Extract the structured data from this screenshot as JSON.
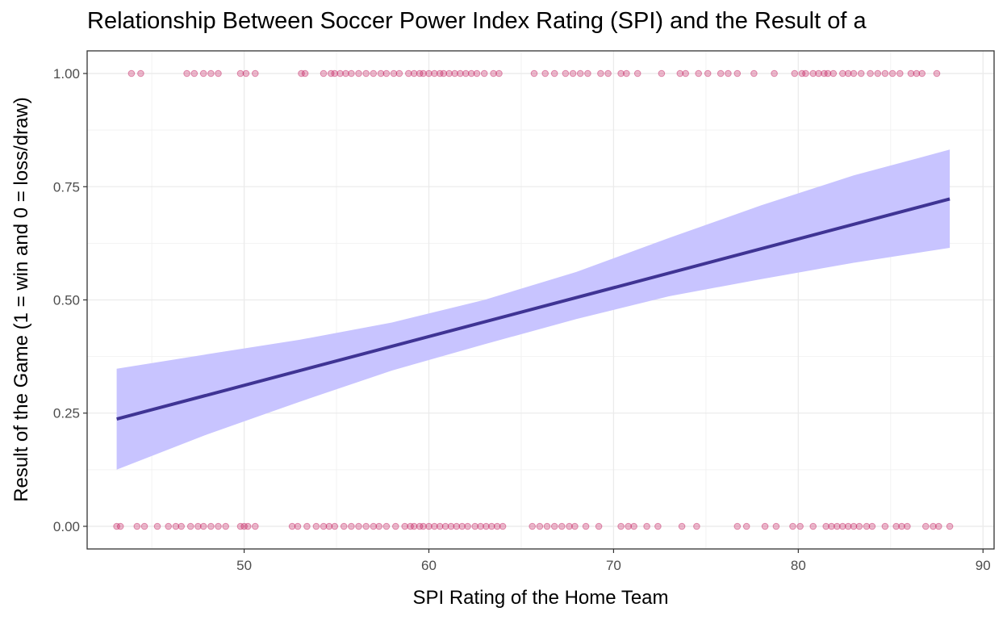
{
  "chart_data": {
    "type": "scatter",
    "title": "Relationship Between Soccer Power Index Rating (SPI) and the Result of a",
    "xlabel": "SPI Rating of the Home Team",
    "ylabel": "Result of the Game (1 = win and 0 = loss/draw)",
    "xlim": [
      41.5,
      90.6
    ],
    "ylim": [
      -0.05,
      1.05
    ],
    "x_ticks": [
      50,
      60,
      70,
      80,
      90
    ],
    "x_tick_labels": [
      "50",
      "60",
      "70",
      "80",
      "90"
    ],
    "y_ticks": [
      0,
      0.25,
      0.5,
      0.75,
      1.0
    ],
    "y_tick_labels": [
      "0.00",
      "0.25",
      "0.50",
      "0.75",
      "1.00"
    ],
    "grid": true,
    "colors": {
      "points": "#c2185b",
      "fit_line": "#3f3494",
      "band": "#c8c4ff"
    },
    "series": [
      {
        "kind": "points",
        "y": 1,
        "x": [
          43.9,
          44.4,
          46.9,
          47.3,
          47.8,
          48.2,
          48.6,
          49.8,
          50.1,
          50.6,
          53.1,
          53.3,
          54.3,
          54.7,
          54.9,
          55.2,
          55.5,
          55.8,
          56.2,
          56.6,
          57.0,
          57.4,
          57.7,
          58.1,
          58.4,
          58.9,
          59.2,
          59.5,
          59.7,
          60.0,
          60.3,
          60.6,
          60.8,
          61.1,
          61.4,
          61.7,
          62.0,
          62.3,
          62.6,
          63.0,
          63.5,
          63.8,
          65.7,
          66.3,
          66.8,
          67.4,
          67.8,
          68.2,
          68.6,
          69.3,
          69.7,
          70.4,
          70.7,
          71.3,
          72.6,
          73.6,
          73.9,
          74.6,
          75.1,
          75.8,
          76.2,
          76.7,
          77.6,
          78.7,
          79.8,
          80.2,
          80.4,
          80.8,
          81.1,
          81.4,
          81.6,
          81.9,
          82.4,
          82.7,
          83.0,
          83.4,
          83.9,
          84.3,
          84.7,
          85.1,
          85.5,
          86.1,
          86.4,
          86.7,
          87.5
        ]
      },
      {
        "kind": "points",
        "y": 0,
        "x": [
          43.1,
          43.3,
          44.2,
          44.6,
          45.3,
          45.9,
          46.3,
          46.6,
          47.1,
          47.5,
          47.8,
          48.2,
          48.6,
          49.0,
          49.8,
          50.0,
          50.2,
          50.6,
          52.6,
          52.9,
          53.4,
          53.9,
          54.3,
          54.6,
          54.9,
          55.4,
          55.8,
          56.2,
          56.6,
          57.0,
          57.3,
          57.7,
          58.2,
          58.7,
          59.0,
          59.2,
          59.5,
          59.7,
          60.0,
          60.3,
          60.6,
          60.9,
          61.2,
          61.5,
          61.8,
          62.1,
          62.5,
          62.8,
          63.1,
          63.4,
          63.7,
          64.0,
          65.6,
          66.0,
          66.4,
          66.8,
          67.2,
          67.6,
          67.9,
          68.5,
          69.2,
          70.4,
          70.8,
          71.1,
          71.8,
          72.4,
          73.7,
          74.5,
          76.7,
          77.2,
          78.2,
          78.8,
          79.7,
          80.1,
          80.8,
          81.5,
          81.8,
          82.1,
          82.4,
          82.7,
          83.0,
          83.3,
          83.7,
          84.0,
          84.7,
          85.3,
          85.6,
          85.9,
          86.9,
          87.3,
          87.6,
          88.2
        ]
      },
      {
        "kind": "fit_line",
        "name": "",
        "x": [
          43.1,
          88.2
        ],
        "y": [
          0.237,
          0.723
        ]
      },
      {
        "kind": "confidence_band",
        "x": [
          43.1,
          48,
          53,
          58,
          63,
          68,
          73,
          78,
          83,
          88.2
        ],
        "lower": [
          0.125,
          0.203,
          0.275,
          0.344,
          0.402,
          0.458,
          0.508,
          0.546,
          0.582,
          0.615
        ],
        "upper": [
          0.348,
          0.38,
          0.412,
          0.45,
          0.5,
          0.562,
          0.637,
          0.709,
          0.775,
          0.832
        ]
      }
    ]
  }
}
